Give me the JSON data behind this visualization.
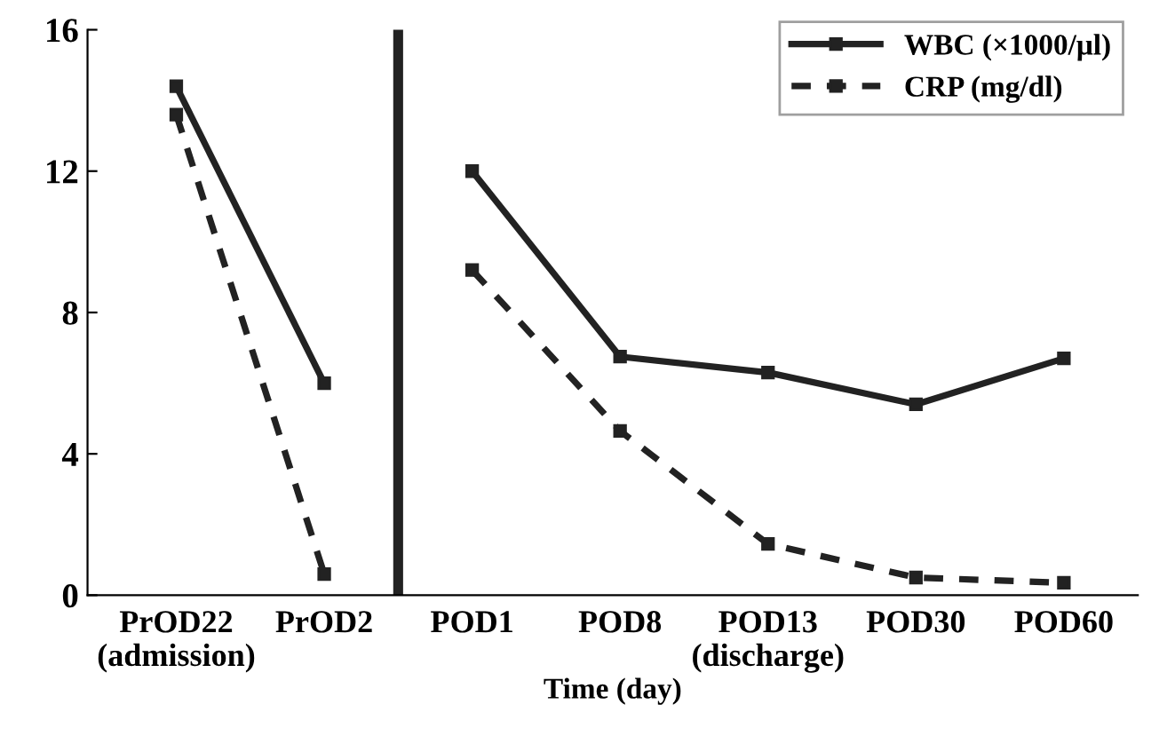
{
  "chart_data": {
    "type": "line",
    "xlabel": "Time (day)",
    "categories": [
      "PrOD22\n(admission)",
      "PrOD2",
      "POD1",
      "POD8",
      "POD13\n(discharge)",
      "POD30",
      "POD60"
    ],
    "series": [
      {
        "name": "WBC (×1000/μl)",
        "color": "#222222",
        "line_style": "solid",
        "values": [
          14.4,
          6.0,
          12.0,
          6.75,
          6.3,
          5.4,
          6.7
        ]
      },
      {
        "name": "CRP (mg/dl)",
        "color": "#222222",
        "line_style": "dashed",
        "values": [
          13.6,
          0.6,
          9.2,
          4.65,
          1.45,
          0.5,
          0.35
        ]
      }
    ],
    "ylim": [
      0,
      16
    ],
    "yticks": [
      0,
      4,
      8,
      12,
      16
    ],
    "marker": "square",
    "legend": "top right",
    "grid": false
  }
}
